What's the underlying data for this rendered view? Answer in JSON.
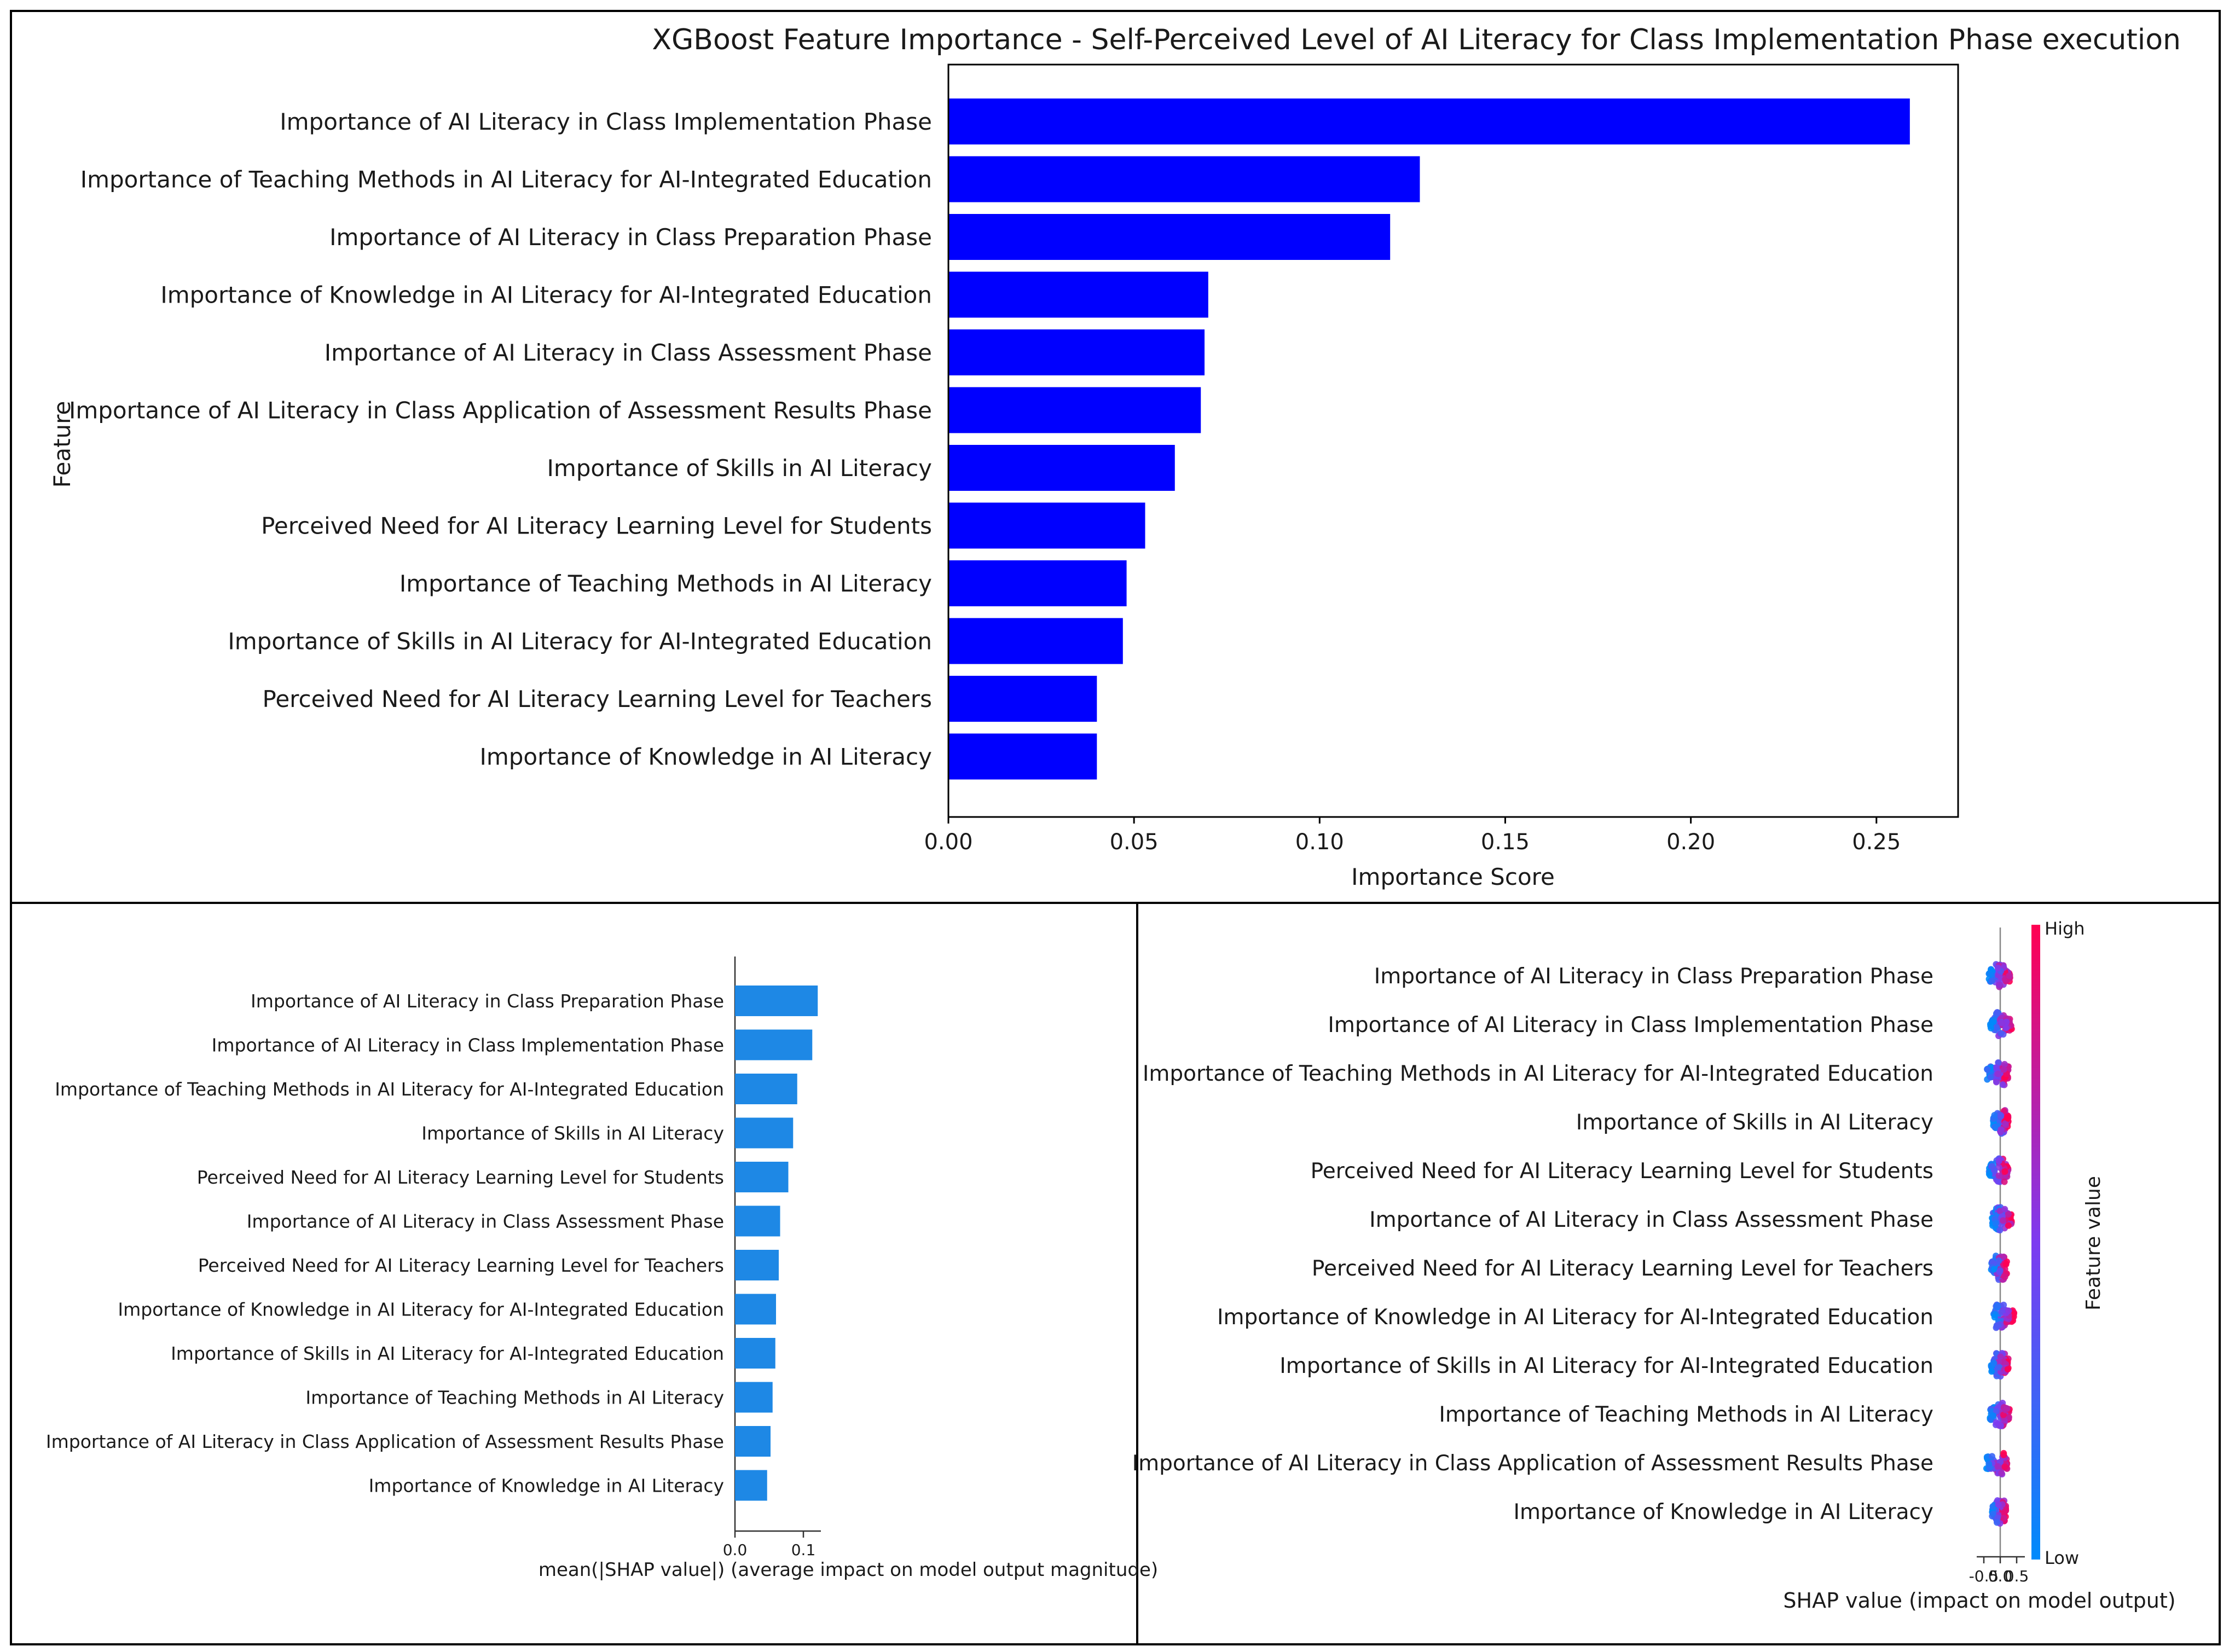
{
  "chart_data": [
    {
      "type": "bar",
      "orientation": "horizontal",
      "title": "XGBoost Feature Importance - Self-Perceived Level of AI Literacy for Class Implementation Phase execution",
      "xlabel": "Importance Score",
      "ylabel": "Feature",
      "xlim": [
        0,
        0.272
      ],
      "xticks": [
        "0.00",
        "0.05",
        "0.10",
        "0.15",
        "0.20",
        "0.25"
      ],
      "color": "#0000ff",
      "categories": [
        "Importance of AI Literacy in Class Implementation Phase",
        "Importance of Teaching Methods in AI Literacy for AI-Integrated Education",
        "Importance of AI Literacy in Class Preparation Phase",
        "Importance of Knowledge in AI Literacy for AI-Integrated Education",
        "Importance of AI Literacy in Class Assessment Phase",
        "Importance of AI Literacy in Class Application of Assessment Results Phase",
        "Importance of Skills in AI Literacy",
        "Perceived Need for AI Literacy Learning Level for Students",
        "Importance of Teaching Methods in AI Literacy",
        "Importance of Skills in AI Literacy for AI-Integrated Education",
        "Perceived Need for AI Literacy Learning Level for Teachers",
        "Importance of Knowledge in AI Literacy"
      ],
      "values": [
        0.259,
        0.127,
        0.119,
        0.07,
        0.069,
        0.068,
        0.061,
        0.053,
        0.048,
        0.047,
        0.04,
        0.04
      ]
    },
    {
      "type": "bar",
      "orientation": "horizontal",
      "title": "",
      "xlabel": "mean(|SHAP value|) (average impact on model output magnitude)",
      "ylabel": "",
      "xlim": [
        0,
        0.13
      ],
      "xticks": [
        "0.0",
        "0.1"
      ],
      "color": "#1e88e5",
      "categories": [
        "Importance of AI Literacy in Class Preparation Phase",
        "Importance of AI Literacy in Class Implementation Phase",
        "Importance of Teaching Methods in AI Literacy for AI-Integrated Education",
        "Importance of Skills in AI Literacy",
        "Perceived Need for AI Literacy Learning Level for Students",
        "Importance of AI Literacy in Class Assessment Phase",
        "Perceived Need for AI Literacy Learning Level for Teachers",
        "Importance of Knowledge in AI Literacy for AI-Integrated Education",
        "Importance of Skills in AI Literacy for AI-Integrated Education",
        "Importance of Teaching Methods in AI Literacy",
        "Importance of AI Literacy in Class Application of Assessment Results Phase",
        "Importance of Knowledge in AI Literacy"
      ],
      "values": [
        0.121,
        0.113,
        0.091,
        0.085,
        0.078,
        0.066,
        0.064,
        0.06,
        0.059,
        0.055,
        0.052,
        0.047
      ]
    },
    {
      "type": "scatter",
      "subtype": "shap-beeswarm",
      "title": "",
      "xlabel": "SHAP value (impact on model output)",
      "xlim": [
        -0.55,
        0.55
      ],
      "xticks": [
        "-0.5",
        "0.0",
        "0.5"
      ],
      "colorbar": {
        "label": "Feature value",
        "high": "High",
        "low": "Low",
        "high_color": "#ff0052",
        "low_color": "#008bfb"
      },
      "categories": [
        "Importance of AI Literacy in Class Preparation Phase",
        "Importance of AI Literacy in Class Implementation Phase",
        "Importance of Teaching Methods in AI Literacy for AI-Integrated Education",
        "Importance of Skills in AI Literacy",
        "Perceived Need for AI Literacy Learning Level for Students",
        "Importance of AI Literacy in Class Assessment Phase",
        "Perceived Need for AI Literacy Learning Level for Teachers",
        "Importance of Knowledge in AI Literacy for AI-Integrated Education",
        "Importance of Skills in AI Literacy for AI-Integrated Education",
        "Importance of Teaching Methods in AI Literacy",
        "Importance of AI Literacy in Class Application of Assessment Results Phase",
        "Importance of Knowledge in AI Literacy"
      ],
      "spread": [
        [
          -0.35,
          0.3
        ],
        [
          -0.3,
          0.35
        ],
        [
          -0.4,
          0.25
        ],
        [
          -0.22,
          0.25
        ],
        [
          -0.35,
          0.25
        ],
        [
          -0.25,
          0.35
        ],
        [
          -0.28,
          0.2
        ],
        [
          -0.2,
          0.42
        ],
        [
          -0.28,
          0.25
        ],
        [
          -0.32,
          0.28
        ],
        [
          -0.42,
          0.22
        ],
        [
          -0.25,
          0.18
        ]
      ]
    }
  ]
}
